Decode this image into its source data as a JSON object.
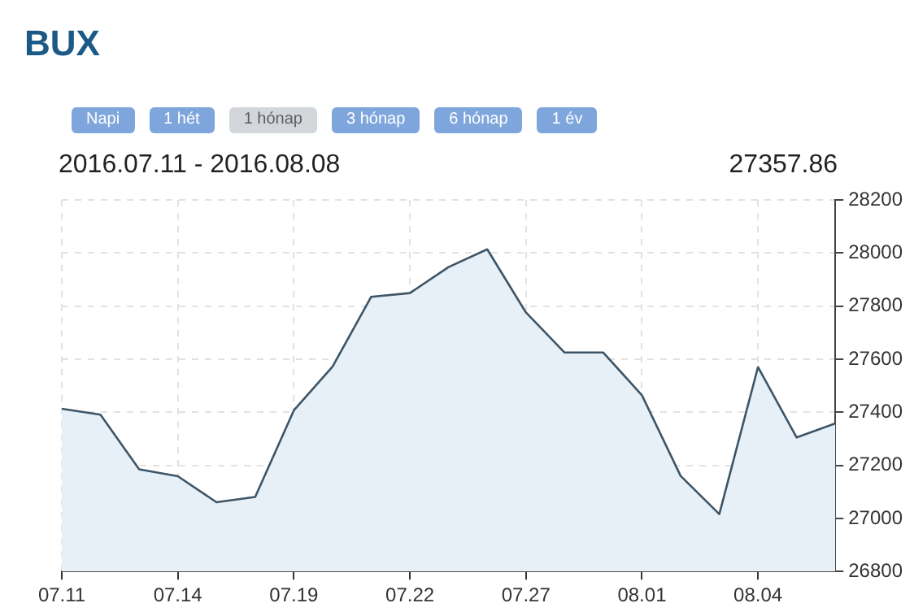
{
  "chart_data": {
    "type": "area",
    "title": "BUX",
    "subtitle": "2016.07.11 - 2016.08.08",
    "annotations": [
      "Napi",
      "1 hét",
      "1 hónap",
      "3 hónap",
      "6 hónap",
      "1 év",
      "27357.86"
    ],
    "categories": [
      "07.11",
      null,
      null,
      "07.14",
      null,
      null,
      "07.19",
      null,
      null,
      "07.22",
      null,
      null,
      "07.27",
      null,
      null,
      "08.01",
      null,
      null,
      "08.04",
      null,
      null
    ],
    "series": [
      {
        "color": "#3d5566",
        "values": [
          27413,
          27391,
          27185,
          27159,
          27061,
          27081,
          27407,
          27572,
          27835,
          27849,
          27947,
          28014,
          27776,
          27625,
          27625,
          27464,
          27160,
          27016,
          27570,
          27305,
          27358
        ]
      }
    ],
    "ylim": [
      26800,
      28200
    ],
    "yticks": [
      26800,
      27000,
      27200,
      27400,
      27600,
      27800,
      28000,
      28200
    ],
    "grid": true,
    "legend": false,
    "marker": "none",
    "line_style": "solid"
  }
}
